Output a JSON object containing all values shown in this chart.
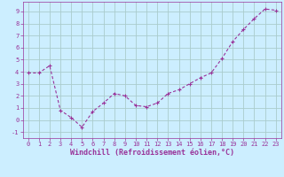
{
  "x": [
    0,
    1,
    2,
    3,
    4,
    5,
    6,
    7,
    8,
    9,
    10,
    11,
    12,
    13,
    14,
    15,
    16,
    17,
    18,
    19,
    20,
    21,
    22,
    23
  ],
  "y": [
    3.9,
    3.9,
    4.5,
    0.8,
    0.2,
    -0.6,
    0.7,
    1.4,
    2.2,
    2.0,
    1.2,
    1.1,
    1.4,
    2.2,
    2.5,
    3.0,
    3.5,
    3.9,
    5.1,
    6.5,
    7.5,
    8.4,
    9.2,
    9.1
  ],
  "line_color": "#993399",
  "marker": "+",
  "bg_color": "#cceeff",
  "grid_color": "#aacccc",
  "xlabel": "Windchill (Refroidissement éolien,°C)",
  "xlabel_color": "#993399",
  "tick_color": "#993399",
  "ylim": [
    -1.5,
    9.8
  ],
  "xlim": [
    -0.5,
    23.5
  ],
  "yticks": [
    -1,
    0,
    1,
    2,
    3,
    4,
    5,
    6,
    7,
    8,
    9
  ],
  "xticks": [
    0,
    1,
    2,
    3,
    4,
    5,
    6,
    7,
    8,
    9,
    10,
    11,
    12,
    13,
    14,
    15,
    16,
    17,
    18,
    19,
    20,
    21,
    22,
    23
  ],
  "tick_fontsize": 5.0,
  "xlabel_fontsize": 6.0,
  "line_width": 0.8,
  "marker_size": 3.5,
  "marker_ew": 0.8
}
